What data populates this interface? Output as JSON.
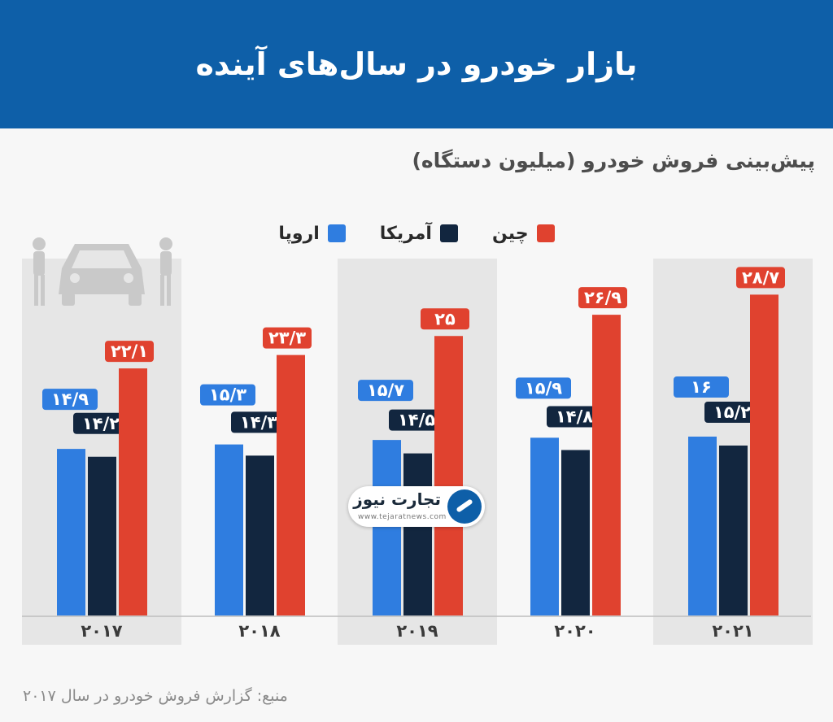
{
  "header": {
    "title": "بازار خودرو در سال‌های آینده"
  },
  "legend": [
    {
      "label": "چین",
      "color": "#e0422f"
    },
    {
      "label": "آمریکا",
      "color": "#12263f"
    },
    {
      "label": "اروپا",
      "color": "#2f7de0"
    }
  ],
  "source": "منبع: گزارش فروش خودرو در سال ۲۰۱۷",
  "logo": {
    "name": "تجارت نیوز",
    "url": "www.tejaratnews.com",
    "icon": "arrow-circle-icon"
  },
  "chart_data": {
    "type": "bar",
    "title": "پیش‌بینی فروش خودرو (میلیون دستگاه)",
    "categories": [
      "2017",
      "2018",
      "2019",
      "2020",
      "2021"
    ],
    "category_labels": [
      "۲۰۱۷",
      "۲۰۱۸",
      "۲۰۱۹",
      "۲۰۲۰",
      "۲۰۲۱"
    ],
    "series": [
      {
        "name": "اروپا",
        "color": "#2f7de0",
        "values": [
          14.9,
          15.3,
          15.7,
          15.9,
          16
        ],
        "labels": [
          "۱۴/۹",
          "۱۵/۳",
          "۱۵/۷",
          "۱۵/۹",
          "۱۶"
        ]
      },
      {
        "name": "آمریکا",
        "color": "#12263f",
        "values": [
          14.2,
          14.3,
          14.5,
          14.8,
          15.2
        ],
        "labels": [
          "۱۴/۲",
          "۱۴/۳",
          "۱۴/۵",
          "۱۴/۸",
          "۱۵/۲"
        ]
      },
      {
        "name": "چین",
        "color": "#e0422f",
        "values": [
          22.1,
          23.3,
          25,
          26.9,
          28.7
        ],
        "labels": [
          "۲۲/۱",
          "۲۳/۳",
          "۲۵",
          "۲۶/۹",
          "۲۸/۷"
        ]
      }
    ],
    "shaded_categories": [
      "2017",
      "2019",
      "2021"
    ],
    "grid": false,
    "legend_position": "top-center"
  }
}
